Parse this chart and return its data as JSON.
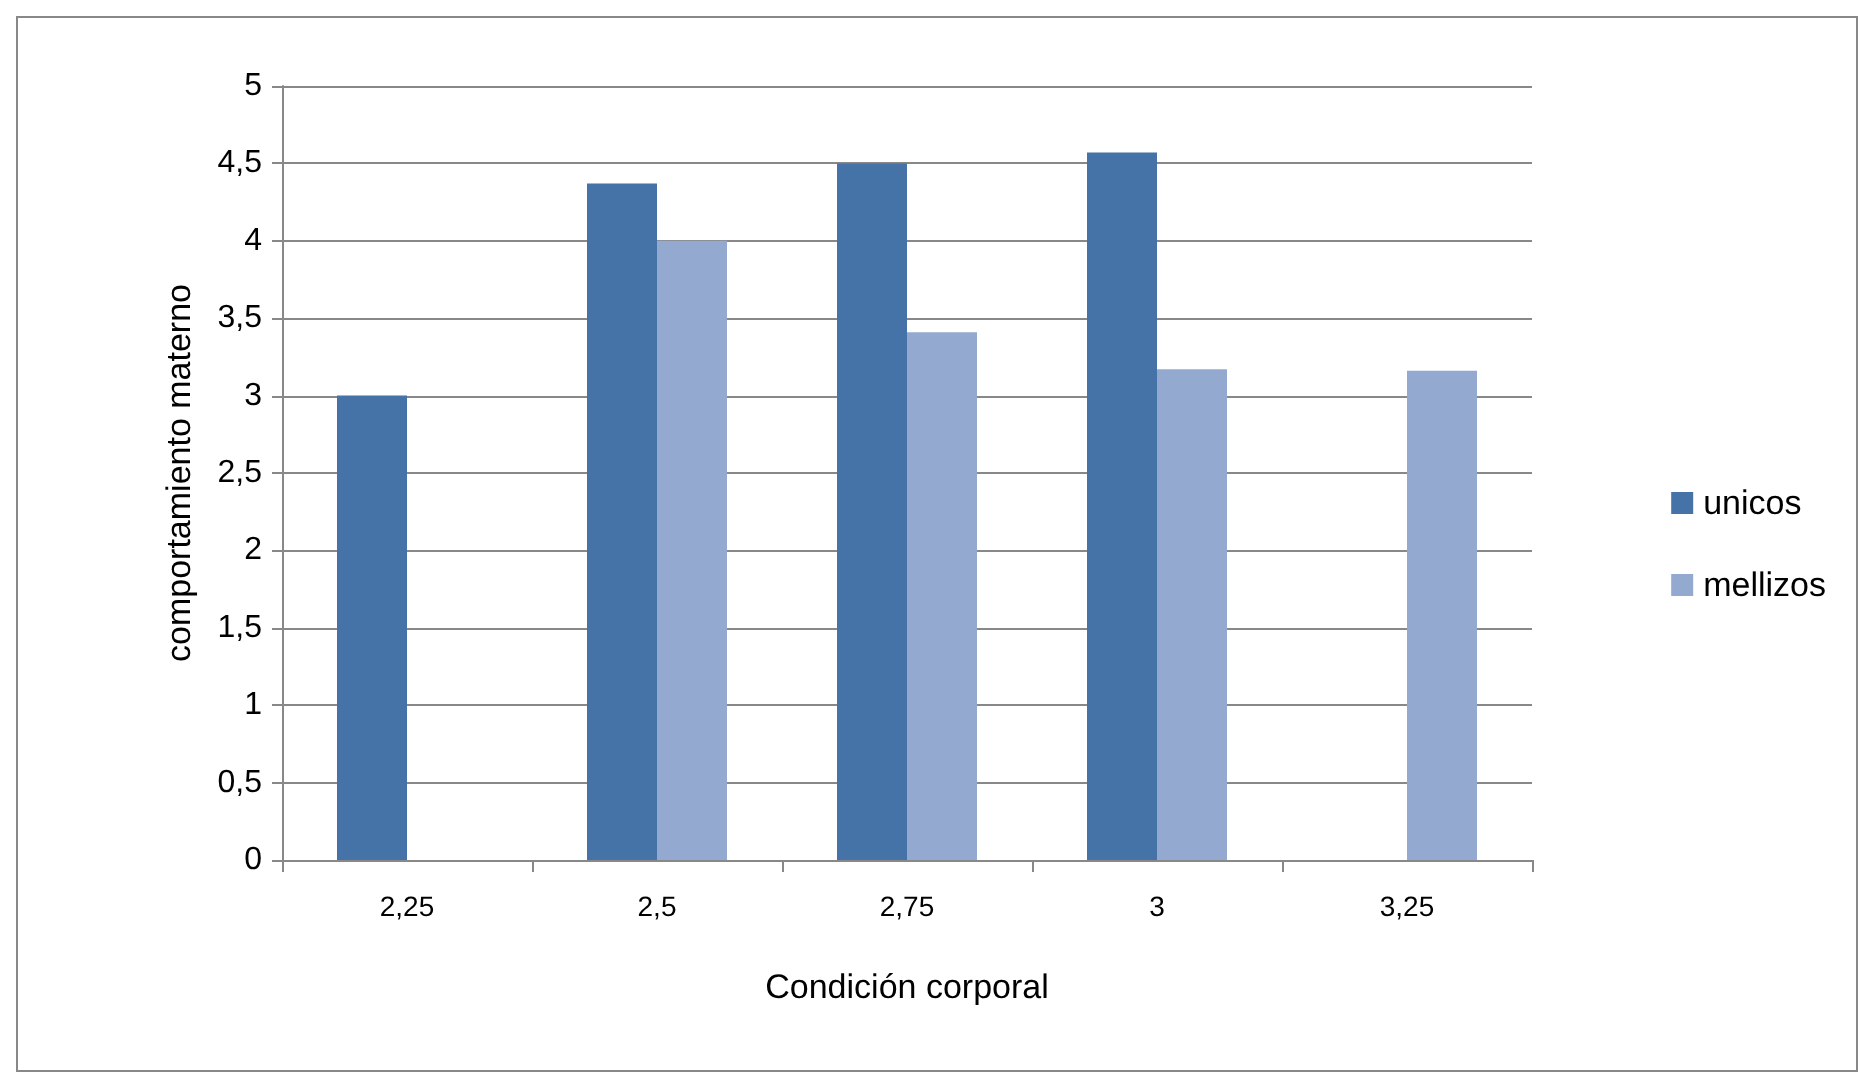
{
  "chart_data": {
    "type": "bar",
    "xlabel": "Condición corporal",
    "ylabel": "comportamiento materno",
    "categories": [
      "2,25",
      "2,5",
      "2,75",
      "3",
      "3,25"
    ],
    "series": [
      {
        "name": "unicos",
        "color": "#4572a7",
        "values": [
          3,
          4.37,
          4.5,
          4.57,
          null
        ]
      },
      {
        "name": "mellizos",
        "color": "#93a9cf",
        "values": [
          null,
          4.0,
          3.41,
          3.17,
          3.16
        ]
      }
    ],
    "ylim": [
      0,
      5
    ],
    "yticks": [
      0,
      {
        "value": 0.5,
        "label": "0,5"
      },
      1,
      {
        "value": 1.5,
        "label": "1,5"
      },
      2,
      {
        "value": 2.5,
        "label": "2,5"
      },
      3,
      {
        "value": 3.5,
        "label": "3,5"
      },
      4,
      {
        "value": 4.5,
        "label": "4,5"
      },
      5
    ],
    "grid": "y",
    "legend": "right"
  }
}
